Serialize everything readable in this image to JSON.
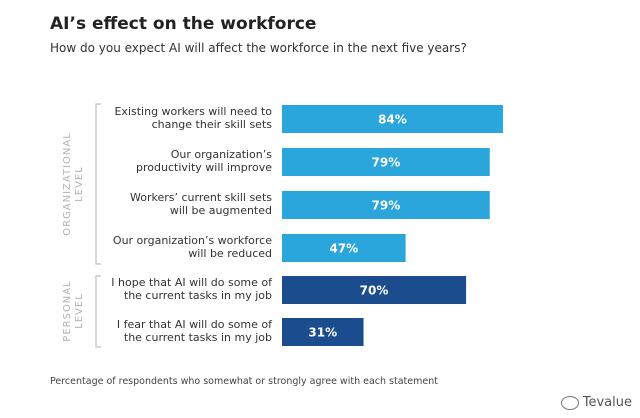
{
  "title": "AI’s effect on the workforce",
  "subtitle": "How do you expect  AI will affect the workforce in the next five years?",
  "footnote": "Percentage of respondents who somewhat or strongly agree with each statement",
  "watermark": {
    "text": "Tevalue",
    "icon": "wechat-icon"
  },
  "colors": {
    "organizational_bar": "#2aa6dc",
    "personal_bar": "#1b4c8d",
    "value_text": "#ffffff",
    "bracket": "#bfbfbf",
    "group_label": "#b3b3b3"
  },
  "chart_data": {
    "type": "bar",
    "orientation": "horizontal",
    "xlim": [
      0,
      100
    ],
    "grid": false,
    "groups": [
      {
        "label": "ORGANIZATIONAL LEVEL",
        "label_lines": [
          "ORGANIZATIONAL",
          "LEVEL"
        ]
      },
      {
        "label": "PERSONAL LEVEL",
        "label_lines": [
          "PERSONAL",
          "LEVEL"
        ]
      }
    ],
    "categories": [
      "Existing workers will need to change their skill sets",
      "Our organization’s productivity will improve",
      "Workers’ current skill sets will be augmented",
      "Our organization’s workforce will be reduced",
      "I hope that AI will do some of the current tasks in my job",
      "I fear that AI will do some of the current  tasks in my job"
    ],
    "category_lines": [
      [
        "Existing workers will need to",
        "change their skill sets"
      ],
      [
        "Our organization’s",
        "productivity will improve"
      ],
      [
        "Workers’ current skill sets",
        "will be augmented"
      ],
      [
        "Our organization’s workforce",
        "will be reduced"
      ],
      [
        "I hope that AI will do some of",
        "the current tasks in my job"
      ],
      [
        "I fear that AI will do some of",
        "the current  tasks in my job"
      ]
    ],
    "group_index": [
      0,
      0,
      0,
      0,
      1,
      1
    ],
    "values": [
      84,
      79,
      79,
      47,
      70,
      31
    ],
    "value_labels": [
      "84%",
      "79%",
      "79%",
      "47%",
      "70%",
      "31%"
    ]
  }
}
